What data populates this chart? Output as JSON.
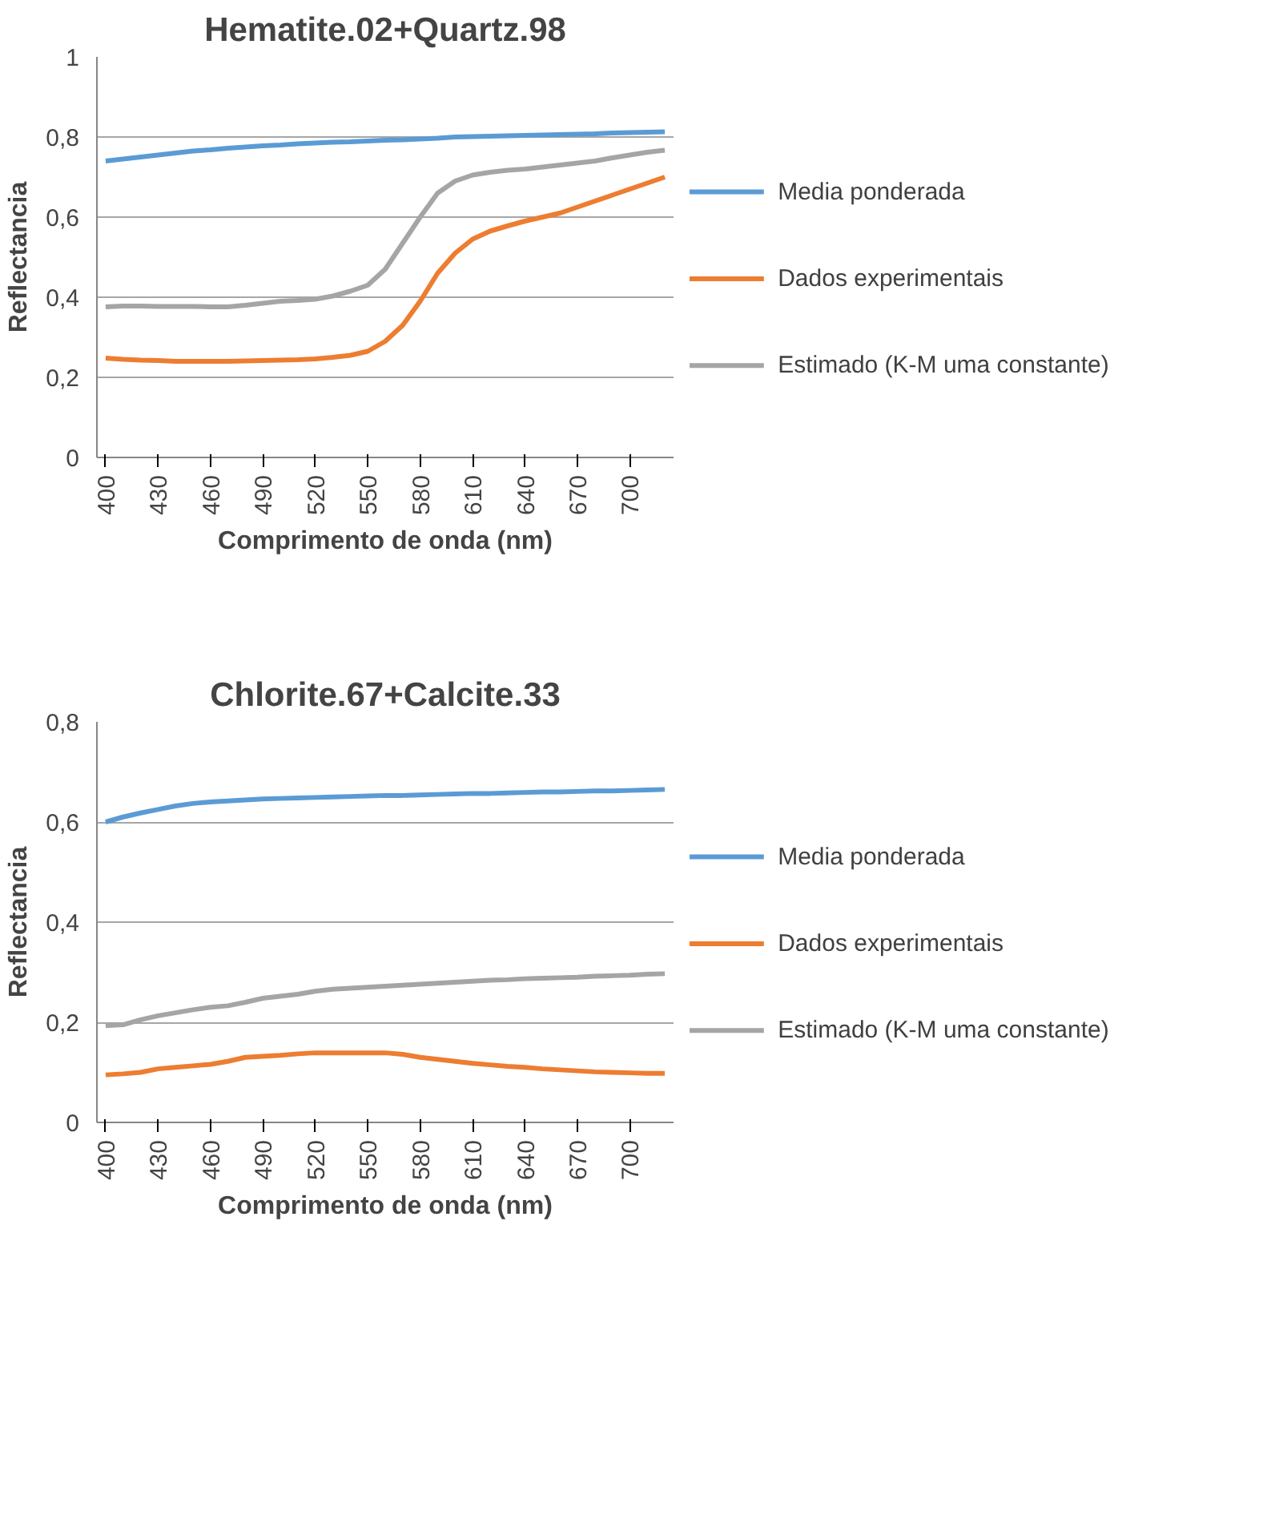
{
  "chart_data": [
    {
      "type": "line",
      "title": "Hematite.02+Quartz.98",
      "xlabel": "Comprimento de onda (nm)",
      "ylabel": "Reflectancia",
      "categories": [
        "400",
        null,
        null,
        "430",
        null,
        null,
        "460",
        null,
        null,
        "490",
        null,
        null,
        "520",
        null,
        null,
        "550",
        null,
        null,
        "580",
        null,
        null,
        "610",
        null,
        null,
        "640",
        null,
        null,
        "670",
        null,
        null,
        "700",
        null,
        null
      ],
      "ylim": [
        0,
        1
      ],
      "yticks": [
        {
          "value": 0,
          "label": "0"
        },
        {
          "value": 0.2,
          "label": "0,2"
        },
        {
          "value": 0.4,
          "label": "0,4"
        },
        {
          "value": 0.6,
          "label": "0,6"
        },
        {
          "value": 0.8,
          "label": "0,8"
        },
        {
          "value": 1,
          "label": "1"
        }
      ],
      "grid": "y",
      "legend": "right",
      "marker": "none",
      "line_style": "solid",
      "series": [
        {
          "name": "Media ponderada",
          "color": "#5b9bd5",
          "values": [
            0.74,
            0.745,
            0.75,
            0.755,
            0.76,
            0.765,
            0.768,
            0.772,
            0.775,
            0.778,
            0.78,
            0.783,
            0.785,
            0.787,
            0.788,
            0.79,
            0.792,
            0.793,
            0.795,
            0.797,
            0.8,
            0.801,
            0.802,
            0.803,
            0.804,
            0.805,
            0.806,
            0.807,
            0.808,
            0.81,
            0.811,
            0.812,
            0.813
          ]
        },
        {
          "name": "Dados experimentais",
          "color": "#ed7d31",
          "values": [
            0.248,
            0.245,
            0.243,
            0.242,
            0.24,
            0.24,
            0.24,
            0.24,
            0.241,
            0.242,
            0.243,
            0.244,
            0.246,
            0.25,
            0.255,
            0.265,
            0.29,
            0.33,
            0.39,
            0.46,
            0.51,
            0.545,
            0.565,
            0.578,
            0.59,
            0.6,
            0.61,
            0.625,
            0.64,
            0.655,
            0.67,
            0.685,
            0.7
          ]
        },
        {
          "name": "Estimado (K-M uma constante)",
          "color": "#a5a5a5",
          "values": [
            0.376,
            0.378,
            0.378,
            0.377,
            0.377,
            0.377,
            0.376,
            0.376,
            0.38,
            0.385,
            0.39,
            0.392,
            0.395,
            0.403,
            0.415,
            0.43,
            0.47,
            0.535,
            0.6,
            0.66,
            0.69,
            0.705,
            0.712,
            0.717,
            0.72,
            0.725,
            0.73,
            0.735,
            0.74,
            0.748,
            0.755,
            0.762,
            0.767
          ]
        }
      ]
    },
    {
      "type": "line",
      "title": "Chlorite.67+Calcite.33",
      "xlabel": "Comprimento de onda (nm)",
      "ylabel": "Reflectancia",
      "categories": [
        "400",
        null,
        null,
        "430",
        null,
        null,
        "460",
        null,
        null,
        "490",
        null,
        null,
        "520",
        null,
        null,
        "550",
        null,
        null,
        "580",
        null,
        null,
        "610",
        null,
        null,
        "640",
        null,
        null,
        "670",
        null,
        null,
        "700",
        null,
        null
      ],
      "ylim": [
        0,
        0.8
      ],
      "yticks": [
        {
          "value": 0,
          "label": "0"
        },
        {
          "value": 0.2,
          "label": "0,2"
        },
        {
          "value": 0.4,
          "label": "0,4"
        },
        {
          "value": 0.6,
          "label": "0,6"
        },
        {
          "value": 0.8,
          "label": "0,8"
        }
      ],
      "grid": "y",
      "legend": "right",
      "marker": "none",
      "line_style": "solid",
      "series": [
        {
          "name": "Media ponderada",
          "color": "#5b9bd5",
          "values": [
            0.6,
            0.61,
            0.618,
            0.625,
            0.632,
            0.637,
            0.64,
            0.642,
            0.644,
            0.646,
            0.647,
            0.648,
            0.649,
            0.65,
            0.651,
            0.652,
            0.653,
            0.653,
            0.654,
            0.655,
            0.656,
            0.657,
            0.657,
            0.658,
            0.659,
            0.66,
            0.66,
            0.661,
            0.662,
            0.662,
            0.663,
            0.664,
            0.665
          ]
        },
        {
          "name": "Dados experimentais",
          "color": "#ed7d31",
          "values": [
            0.095,
            0.097,
            0.1,
            0.107,
            0.11,
            0.113,
            0.116,
            0.122,
            0.13,
            0.132,
            0.134,
            0.137,
            0.139,
            0.139,
            0.139,
            0.139,
            0.139,
            0.136,
            0.13,
            0.126,
            0.122,
            0.118,
            0.115,
            0.112,
            0.11,
            0.107,
            0.105,
            0.103,
            0.101,
            0.1,
            0.099,
            0.098,
            0.098
          ]
        },
        {
          "name": "Estimado (K-M uma constante)",
          "color": "#a5a5a5",
          "values": [
            0.193,
            0.195,
            0.205,
            0.213,
            0.219,
            0.225,
            0.23,
            0.233,
            0.24,
            0.248,
            0.252,
            0.256,
            0.262,
            0.266,
            0.268,
            0.27,
            0.272,
            0.274,
            0.276,
            0.278,
            0.28,
            0.282,
            0.284,
            0.285,
            0.287,
            0.288,
            0.289,
            0.29,
            0.292,
            0.293,
            0.294,
            0.296,
            0.297
          ]
        }
      ]
    }
  ]
}
